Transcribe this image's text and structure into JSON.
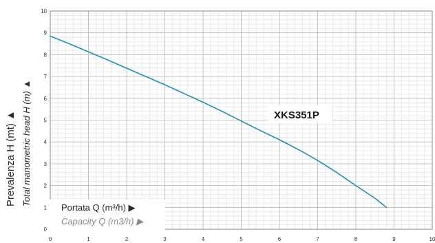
{
  "chart_data": {
    "type": "line",
    "title": "",
    "xlabel": "Portata Q (m³/h)",
    "xlabel_secondary": "Capacity Q (m3/h)",
    "ylabel": "Prevalenza H (mt)",
    "ylabel_secondary": "Total manometric head H (m)",
    "xlim": [
      0,
      10
    ],
    "ylim": [
      0,
      10
    ],
    "x_ticks": [
      "0",
      "1",
      "2",
      "3",
      "4",
      "5",
      "6",
      "7",
      "8",
      "9",
      "10"
    ],
    "y_ticks": [
      "0",
      "1",
      "2",
      "3",
      "4",
      "5",
      "6",
      "7",
      "8",
      "9",
      "10"
    ],
    "grid": true,
    "minor_grid": true,
    "series": [
      {
        "name": "XKS351P",
        "color": "#1f8fb0",
        "x": [
          0,
          0.5,
          1,
          1.5,
          2,
          2.5,
          3,
          3.5,
          4,
          4.5,
          5,
          5.5,
          6,
          6.5,
          7,
          7.5,
          8,
          8.5,
          8.8
        ],
        "y": [
          8.85,
          8.5,
          8.13,
          7.76,
          7.38,
          7.0,
          6.62,
          6.22,
          5.82,
          5.4,
          4.96,
          4.52,
          4.1,
          3.65,
          3.15,
          2.6,
          2.0,
          1.42,
          1.0
        ]
      }
    ]
  }
}
